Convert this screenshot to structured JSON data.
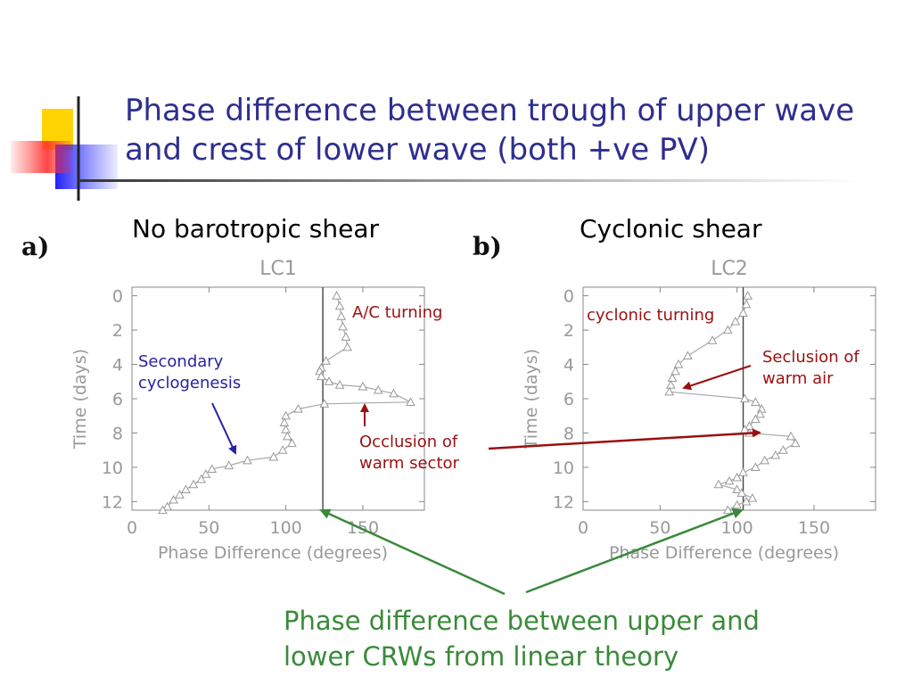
{
  "slide": {
    "title_line1": "Phase difference between trough of upper wave",
    "title_line2": "and crest of lower wave (both +ve PV)",
    "subtitle_left": "No barotropic shear",
    "subtitle_right": "Cyclonic shear",
    "label_a": "a)",
    "label_b": "b)",
    "annotations": {
      "ac_turning": "A/C turning",
      "secondary_1": "Secondary",
      "secondary_2": "cyclogenesis",
      "occlusion_1": "Occlusion of",
      "occlusion_2": "warm sector",
      "cyclonic_turning": "cyclonic turning",
      "seclusion_1": "Seclusion of",
      "seclusion_2": "warm air"
    },
    "bottom_line1": "Phase difference between upper and",
    "bottom_line2": "lower CRWs from linear theory",
    "colors": {
      "title": "#2e2e8f",
      "annotation_blue": "#2424a0",
      "annotation_red": "#9a1010",
      "note_green": "#3a8a3a",
      "data_gray": "#a8a8a8"
    }
  },
  "chart_data": [
    {
      "type": "line",
      "title": "LC1",
      "xlabel": "Phase Difference   (degrees)",
      "ylabel": "Time   (days)",
      "xlim": [
        0,
        190
      ],
      "ylim": [
        12.5,
        -0.5
      ],
      "xticks": [
        0,
        50,
        100,
        150
      ],
      "yticks": [
        0,
        2,
        4,
        6,
        8,
        10,
        12
      ],
      "reference_x": 124,
      "marker": "triangle",
      "points": [
        [
          133,
          0.0
        ],
        [
          135,
          0.6
        ],
        [
          136,
          1.2
        ],
        [
          137,
          1.8
        ],
        [
          139,
          2.4
        ],
        [
          140,
          3.0
        ],
        [
          126,
          3.8
        ],
        [
          123,
          4.2
        ],
        [
          122,
          4.4
        ],
        [
          123,
          4.7
        ],
        [
          128,
          5.0
        ],
        [
          135,
          5.2
        ],
        [
          150,
          5.3
        ],
        [
          160,
          5.5
        ],
        [
          170,
          5.7
        ],
        [
          181,
          6.2
        ],
        [
          125,
          6.3
        ],
        [
          108,
          6.6
        ],
        [
          100,
          7.0
        ],
        [
          99,
          7.4
        ],
        [
          100,
          7.8
        ],
        [
          101,
          8.2
        ],
        [
          104,
          8.6
        ],
        [
          98,
          9.0
        ],
        [
          92,
          9.4
        ],
        [
          75,
          9.6
        ],
        [
          63,
          9.9
        ],
        [
          52,
          10.1
        ],
        [
          48,
          10.4
        ],
        [
          45,
          10.7
        ],
        [
          40,
          11.0
        ],
        [
          35,
          11.3
        ],
        [
          31,
          11.6
        ],
        [
          27,
          11.9
        ],
        [
          23,
          12.3
        ],
        [
          20,
          12.5
        ]
      ]
    },
    {
      "type": "line",
      "title": "LC2",
      "xlabel": "Phase Difference   (degrees)",
      "ylabel": "Time   (days)",
      "xlim": [
        0,
        190
      ],
      "ylim": [
        12.5,
        -0.5
      ],
      "xticks": [
        0,
        50,
        100,
        150
      ],
      "yticks": [
        0,
        2,
        4,
        6,
        8,
        10,
        12
      ],
      "reference_x": 104,
      "marker": "triangle",
      "points": [
        [
          107,
          0.0
        ],
        [
          106,
          0.5
        ],
        [
          104,
          1.0
        ],
        [
          99,
          1.5
        ],
        [
          94,
          2.0
        ],
        [
          84,
          2.6
        ],
        [
          68,
          3.5
        ],
        [
          62,
          4.0
        ],
        [
          60,
          4.4
        ],
        [
          58,
          4.8
        ],
        [
          57,
          5.2
        ],
        [
          56,
          5.6
        ],
        [
          105,
          6.0
        ],
        [
          112,
          6.2
        ],
        [
          116,
          6.6
        ],
        [
          115,
          6.9
        ],
        [
          112,
          7.2
        ],
        [
          108,
          7.6
        ],
        [
          105,
          7.8
        ],
        [
          108,
          8.0
        ],
        [
          135,
          8.2
        ],
        [
          138,
          8.6
        ],
        [
          130,
          9.0
        ],
        [
          125,
          9.3
        ],
        [
          118,
          9.6
        ],
        [
          112,
          10.0
        ],
        [
          104,
          10.3
        ],
        [
          100,
          10.6
        ],
        [
          95,
          10.8
        ],
        [
          88,
          11.0
        ],
        [
          100,
          11.3
        ],
        [
          103,
          11.5
        ],
        [
          110,
          11.8
        ],
        [
          106,
          12.0
        ],
        [
          100,
          12.2
        ],
        [
          94,
          12.5
        ]
      ]
    }
  ]
}
